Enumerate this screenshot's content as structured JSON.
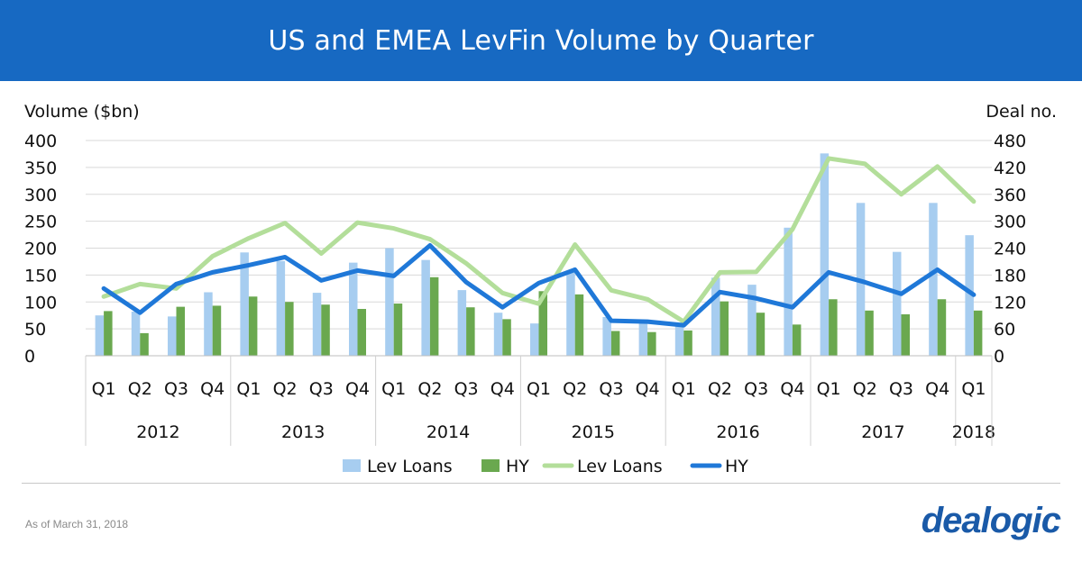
{
  "header": {
    "title": "US and EMEA LevFin Volume by Quarter"
  },
  "footnote": "As of March 31, 2018",
  "logo_text": "dealogic",
  "colors": {
    "header_bg": "#1769c2",
    "lev_loans_bar": "#a7cdf0",
    "hy_bar": "#6aa84f",
    "lev_loans_line": "#b3de9a",
    "hy_line": "#1f78d8"
  },
  "chart_data": {
    "type": "bar",
    "left_axis_label": "Volume ($bn)",
    "right_axis_label": "Deal no.",
    "left_ylim": [
      0,
      400
    ],
    "right_ylim": [
      0,
      480
    ],
    "left_ticks": [
      0,
      50,
      100,
      150,
      200,
      250,
      300,
      350,
      400
    ],
    "right_ticks": [
      0,
      60,
      120,
      180,
      240,
      300,
      360,
      420,
      480
    ],
    "grid": true,
    "legend_position": "bottom",
    "quarters": [
      "Q1",
      "Q2",
      "Q3",
      "Q4",
      "Q1",
      "Q2",
      "Q3",
      "Q4",
      "Q1",
      "Q2",
      "Q3",
      "Q4",
      "Q1",
      "Q2",
      "Q3",
      "Q4",
      "Q1",
      "Q2",
      "Q3",
      "Q4",
      "Q1",
      "Q2",
      "Q3",
      "Q4",
      "Q1"
    ],
    "years": [
      {
        "label": "2012",
        "count": 4
      },
      {
        "label": "2013",
        "count": 4
      },
      {
        "label": "2014",
        "count": 4
      },
      {
        "label": "2015",
        "count": 4
      },
      {
        "label": "2016",
        "count": 4
      },
      {
        "label": "2017",
        "count": 4
      },
      {
        "label": "2018",
        "count": 1
      }
    ],
    "series": [
      {
        "name": "Lev Loans",
        "kind": "bar",
        "axis": "left",
        "values": [
          75,
          82,
          73,
          118,
          192,
          176,
          117,
          173,
          200,
          178,
          122,
          80,
          60,
          155,
          72,
          64,
          60,
          145,
          132,
          238,
          376,
          284,
          193,
          284,
          224
        ]
      },
      {
        "name": "HY",
        "kind": "bar",
        "axis": "left",
        "values": [
          83,
          42,
          91,
          93,
          110,
          100,
          95,
          87,
          97,
          146,
          90,
          68,
          120,
          114,
          46,
          44,
          47,
          101,
          80,
          58,
          105,
          84,
          77,
          105,
          84
        ]
      },
      {
        "name": "Lev Loans",
        "kind": "line",
        "axis": "right",
        "values": [
          132,
          160,
          150,
          222,
          262,
          296,
          228,
          297,
          284,
          260,
          206,
          140,
          116,
          248,
          146,
          126,
          76,
          186,
          187,
          282,
          440,
          428,
          360,
          422,
          344
        ]
      },
      {
        "name": "HY",
        "kind": "line",
        "axis": "right",
        "values": [
          150,
          96,
          160,
          186,
          202,
          220,
          168,
          190,
          178,
          246,
          164,
          108,
          162,
          192,
          78,
          76,
          68,
          142,
          128,
          108,
          186,
          164,
          138,
          192,
          136
        ]
      }
    ]
  }
}
